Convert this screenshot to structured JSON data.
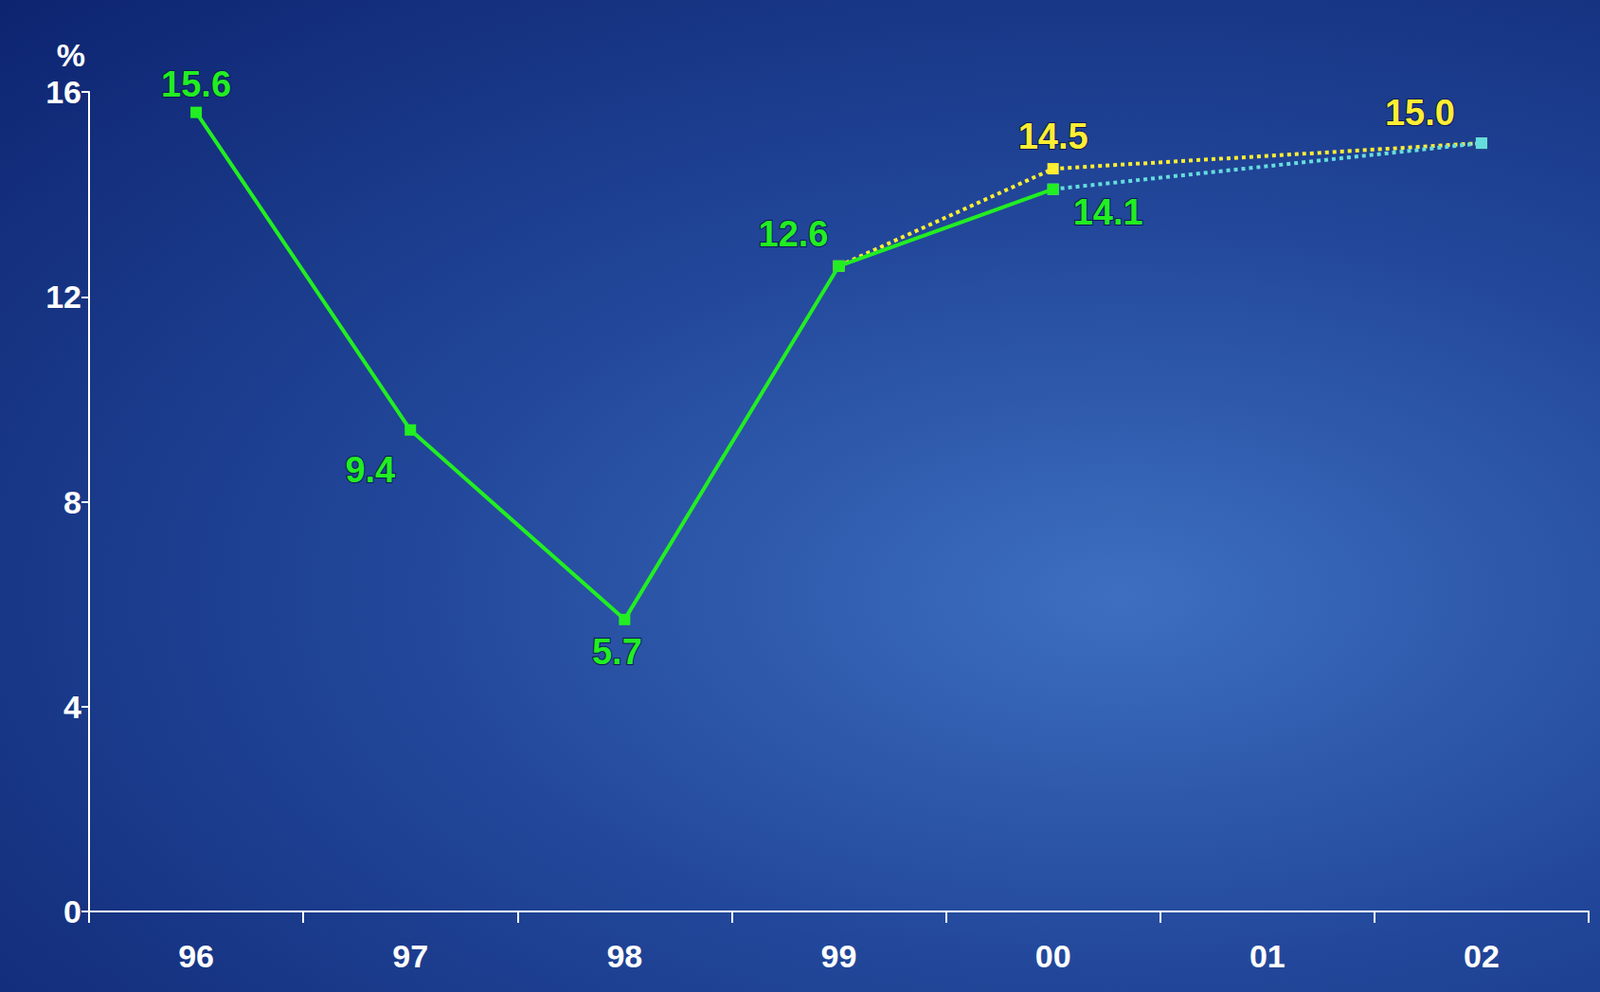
{
  "chart_data": {
    "type": "line",
    "y_label": "%",
    "categories": [
      "96",
      "97",
      "98",
      "99",
      "00",
      "01",
      "02"
    ],
    "ylim": [
      0,
      16
    ],
    "yticks": [
      0,
      4,
      8,
      12,
      16
    ],
    "grid": false,
    "data_labels": true,
    "series": [
      {
        "color": "#22ee22",
        "line_style": "solid",
        "marker": "square",
        "values": [
          15.6,
          9.4,
          5.7,
          12.6,
          14.1,
          null,
          null
        ]
      },
      {
        "color": "#ffee33",
        "line_style": "dotted",
        "marker": "square",
        "values": [
          null,
          null,
          null,
          12.6,
          14.5,
          null,
          15.0
        ],
        "value_labels": [
          null,
          null,
          null,
          null,
          "14.5",
          null,
          "15.0"
        ]
      },
      {
        "color": "#66dddd",
        "line_style": "dotted",
        "marker": "square",
        "values": [
          null,
          null,
          null,
          null,
          14.1,
          null,
          15.0
        ],
        "value_labels": [
          null,
          null,
          null,
          null,
          null,
          null,
          null
        ]
      }
    ]
  }
}
